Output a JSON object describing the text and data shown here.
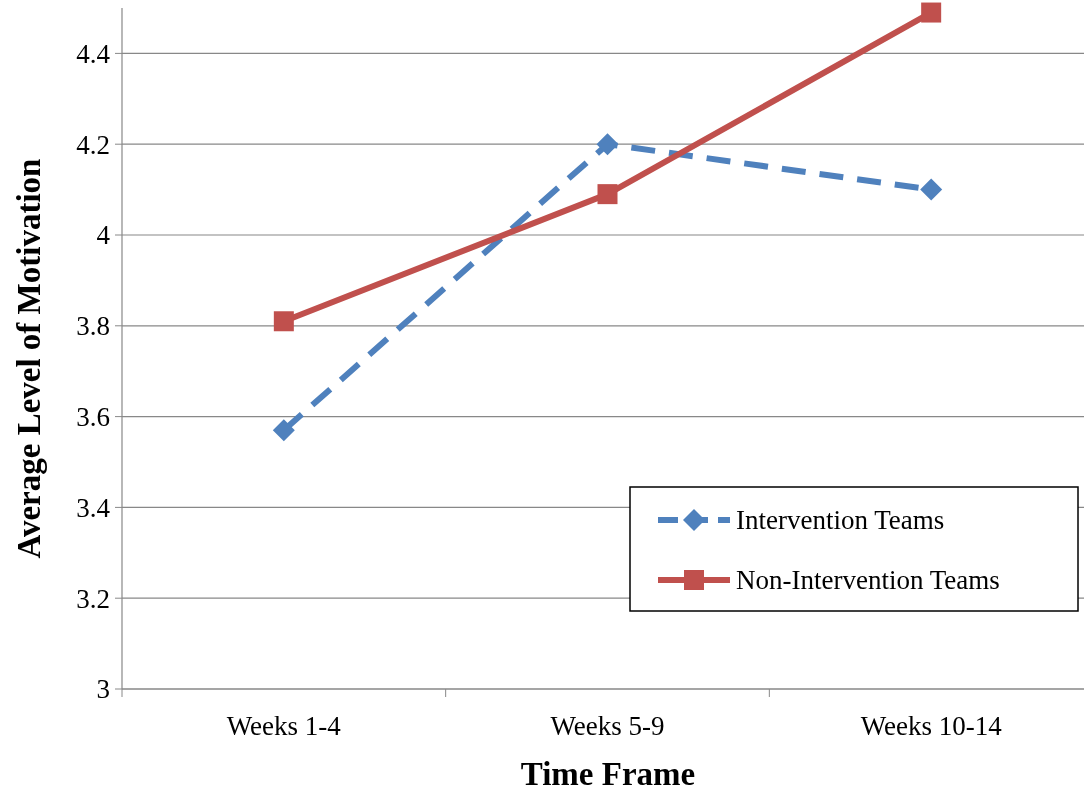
{
  "chart_data": {
    "type": "line",
    "xlabel": "Time Frame",
    "ylabel": "Average Level of Motivation",
    "categories": [
      "Weeks 1-4",
      "Weeks 5-9",
      "Weeks 10-14"
    ],
    "series": [
      {
        "name": "Intervention Teams",
        "color": "#4f81bd",
        "values": [
          3.57,
          4.2,
          4.1
        ],
        "marker": "diamond",
        "line_style": "dashed"
      },
      {
        "name": "Non-Intervention Teams",
        "color": "#c0504d",
        "values": [
          3.81,
          4.09,
          4.49
        ],
        "marker": "square",
        "line_style": "solid"
      }
    ],
    "ylim": [
      3,
      4.5
    ],
    "yticks": [
      3,
      3.2,
      3.4,
      3.6,
      3.8,
      4,
      4.2,
      4.4
    ],
    "grid": "y",
    "legend": "bottom right"
  }
}
